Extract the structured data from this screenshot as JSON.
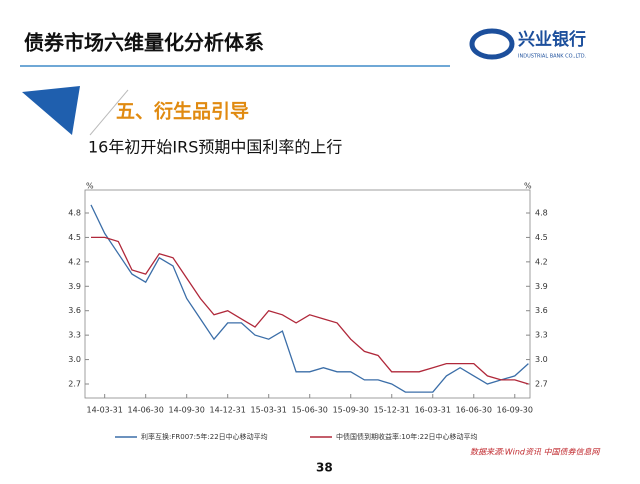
{
  "slide": {
    "title": "债券市场六维量化分析体系",
    "logo_name": "兴业银行",
    "logo_en": "INDUSTRIAL BANK CO.,LTD.",
    "section": "五、衍生品引导",
    "page": "38"
  },
  "chart_data": {
    "type": "line",
    "title": "16年初开始IRS预期中国利率的上行",
    "x": [
      "14-02-28",
      "14-03-31",
      "14-04-30",
      "14-05-31",
      "14-06-30",
      "14-07-31",
      "14-08-31",
      "14-09-30",
      "14-10-31",
      "14-11-30",
      "14-12-31",
      "15-01-31",
      "15-02-28",
      "15-03-31",
      "15-04-30",
      "15-05-31",
      "15-06-30",
      "15-07-31",
      "15-08-31",
      "15-09-30",
      "15-10-31",
      "15-11-30",
      "15-12-31",
      "16-01-31",
      "16-02-29",
      "16-03-31",
      "16-04-30",
      "16-05-31",
      "16-06-30",
      "16-07-31",
      "16-08-31",
      "16-09-30",
      "16-10-31"
    ],
    "xticks": [
      "14-03-31",
      "14-06-30",
      "14-09-30",
      "14-12-31",
      "15-03-31",
      "15-06-30",
      "15-09-30",
      "15-12-31",
      "16-03-31",
      "16-06-30",
      "16-09-30"
    ],
    "y_unit": "%",
    "y2_unit": "%",
    "ylim": [
      2.7,
      4.8
    ],
    "yticks": [
      2.7,
      {
        "value": 3,
        "label": "3.0"
      },
      3.3,
      3.6,
      3.9,
      4.2,
      4.5,
      4.8
    ],
    "y2lim": [
      2.7,
      4.8
    ],
    "y2ticks": [
      2.7,
      {
        "value": 3,
        "label": "3.0"
      },
      3.3,
      3.6,
      3.9,
      4.2,
      4.5,
      4.8
    ],
    "series": [
      {
        "name": "利率互换:FR007:5年:22日中心移动平均",
        "color": "#3b6ea8",
        "values": [
          4.9,
          4.55,
          4.3,
          4.05,
          3.95,
          4.25,
          4.15,
          3.75,
          3.5,
          3.25,
          3.45,
          3.45,
          3.3,
          3.25,
          3.35,
          2.85,
          2.85,
          2.9,
          2.85,
          2.85,
          2.75,
          2.75,
          2.7,
          2.6,
          2.6,
          2.6,
          2.8,
          2.9,
          2.8,
          2.7,
          2.75,
          2.8,
          2.95
        ]
      },
      {
        "name": "中债国债到期收益率:10年:22日中心移动平均",
        "color": "#b0283a",
        "axis": "y2",
        "values": [
          4.5,
          4.5,
          4.45,
          4.1,
          4.05,
          4.3,
          4.25,
          4.0,
          3.75,
          3.55,
          3.6,
          3.5,
          3.4,
          3.6,
          3.55,
          3.45,
          3.55,
          3.5,
          3.45,
          3.25,
          3.1,
          3.05,
          2.85,
          2.85,
          2.85,
          2.9,
          2.95,
          2.95,
          2.95,
          2.8,
          2.75,
          2.75,
          2.7
        ]
      }
    ],
    "source": "数据来源:Wind资讯 中国债券信息网"
  }
}
